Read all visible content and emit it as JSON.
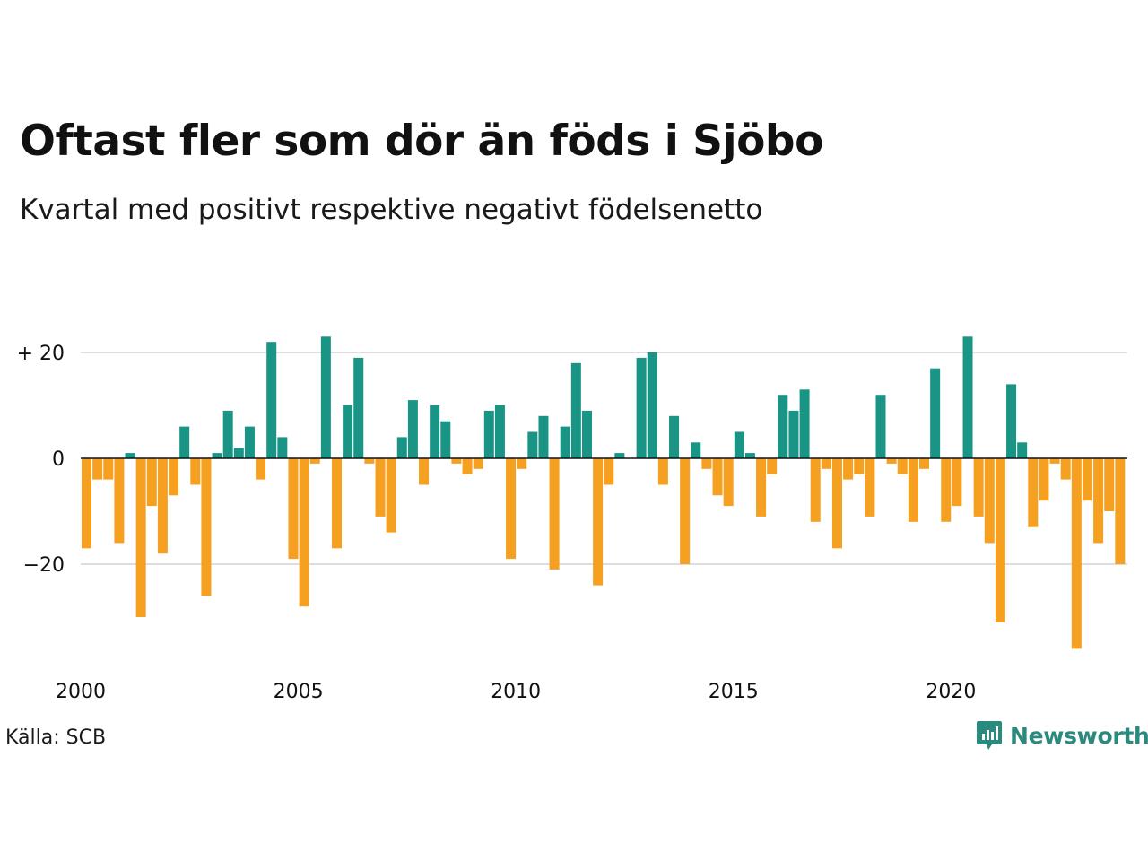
{
  "header": {
    "title": "Oftast fler som dör än föds i Sjöbo",
    "subtitle": "Kvartal med positivt respektive negativt födelsenetto"
  },
  "footer": {
    "source": "Källa: SCB",
    "brand": "Newsworthy"
  },
  "colors": {
    "positive": "#1a9484",
    "negative": "#f5a020",
    "grid": "#dddddd",
    "zero_line": "#111111",
    "brand": "#2a8a7e"
  },
  "chart_data": {
    "type": "bar",
    "title": "Oftast fler som dör än föds i Sjöbo",
    "subtitle": "Kvartal med positivt respektive negativt födelsenetto",
    "x_start_year": 2000,
    "quarters_per_year": 4,
    "x_tick_labels": [
      "2000",
      "2005",
      "2010",
      "2015",
      "2020"
    ],
    "y_ticks": [
      {
        "value": 20,
        "label": "+ 20"
      },
      {
        "value": 0,
        "label": "0"
      },
      {
        "value": -20,
        "label": "−20"
      }
    ],
    "ylim": [
      -36,
      23
    ],
    "grid": true,
    "values": [
      -17,
      -4,
      -4,
      -16,
      1,
      -30,
      -9,
      -18,
      -7,
      6,
      -5,
      -26,
      1,
      9,
      2,
      6,
      -4,
      22,
      4,
      -19,
      -28,
      -1,
      23,
      -17,
      10,
      19,
      -1,
      -11,
      -14,
      4,
      11,
      -5,
      10,
      7,
      -1,
      -3,
      -2,
      9,
      10,
      -19,
      -2,
      5,
      8,
      -21,
      6,
      18,
      9,
      -24,
      -5,
      1,
      0,
      19,
      20,
      -5,
      8,
      -20,
      3,
      -2,
      -7,
      -9,
      5,
      1,
      -11,
      -3,
      12,
      9,
      13,
      -12,
      -2,
      -17,
      -4,
      -3,
      -11,
      12,
      -1,
      -3,
      -12,
      -2,
      17,
      -12,
      -9,
      23,
      -11,
      -16,
      -31,
      14,
      3,
      -13,
      -8,
      -1,
      -4,
      -36,
      -8,
      -16,
      -10,
      -20
    ]
  }
}
